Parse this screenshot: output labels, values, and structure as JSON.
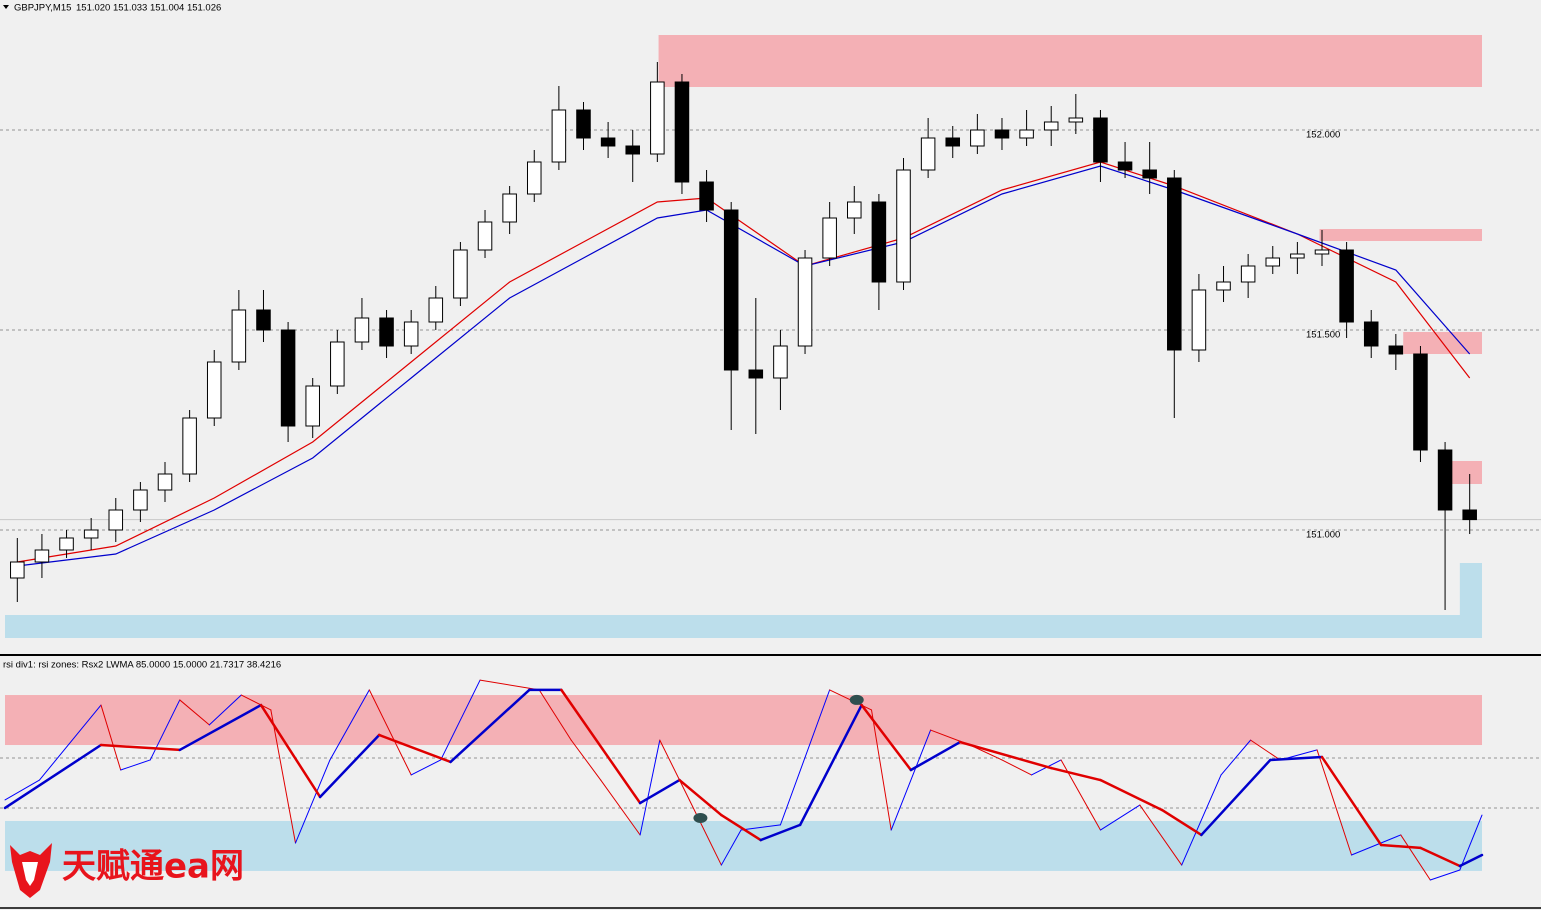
{
  "chart_data": [
    {
      "type": "candlestick",
      "title": "GBPJPY,M15",
      "quote": "151.020 151.033 151.004 151.026",
      "xlim": [
        -0.5,
        59.5
      ],
      "ylim": [
        150.695,
        152.325
      ],
      "yticks": [
        {
          "value": 151,
          "label": "151.000"
        },
        {
          "value": 151.5,
          "label": "151.500"
        },
        {
          "value": 152,
          "label": "152.000"
        }
      ],
      "grid": true,
      "up_color": "#ffffff",
      "down_color": "#000000",
      "candles": [
        [
          150.88,
          150.98,
          150.82,
          150.92
        ],
        [
          150.92,
          150.99,
          150.88,
          150.95
        ],
        [
          150.95,
          151.0,
          150.93,
          150.98
        ],
        [
          150.98,
          151.03,
          150.95,
          151.0
        ],
        [
          151.0,
          151.08,
          150.97,
          151.05
        ],
        [
          151.05,
          151.12,
          151.02,
          151.1
        ],
        [
          151.1,
          151.17,
          151.07,
          151.14
        ],
        [
          151.14,
          151.3,
          151.12,
          151.28
        ],
        [
          151.28,
          151.45,
          151.26,
          151.42
        ],
        [
          151.42,
          151.6,
          151.4,
          151.55
        ],
        [
          151.55,
          151.6,
          151.47,
          151.5
        ],
        [
          151.5,
          151.52,
          151.22,
          151.26
        ],
        [
          151.26,
          151.38,
          151.23,
          151.36
        ],
        [
          151.36,
          151.5,
          151.34,
          151.47
        ],
        [
          151.47,
          151.58,
          151.45,
          151.53
        ],
        [
          151.53,
          151.55,
          151.43,
          151.46
        ],
        [
          151.46,
          151.55,
          151.44,
          151.52
        ],
        [
          151.52,
          151.61,
          151.5,
          151.58
        ],
        [
          151.58,
          151.72,
          151.56,
          151.7
        ],
        [
          151.7,
          151.8,
          151.68,
          151.77
        ],
        [
          151.77,
          151.86,
          151.74,
          151.84
        ],
        [
          151.84,
          151.95,
          151.82,
          151.92
        ],
        [
          151.92,
          152.11,
          151.9,
          152.05
        ],
        [
          152.05,
          152.07,
          151.95,
          151.98
        ],
        [
          151.98,
          152.02,
          151.93,
          151.96
        ],
        [
          151.96,
          152.0,
          151.87,
          151.94
        ],
        [
          151.94,
          152.17,
          151.92,
          152.12
        ],
        [
          152.12,
          152.14,
          151.84,
          151.87
        ],
        [
          151.87,
          151.9,
          151.77,
          151.8
        ],
        [
          151.8,
          151.82,
          151.25,
          151.4
        ],
        [
          151.4,
          151.58,
          151.24,
          151.38
        ],
        [
          151.38,
          151.5,
          151.3,
          151.46
        ],
        [
          151.46,
          151.7,
          151.44,
          151.68
        ],
        [
          151.68,
          151.82,
          151.66,
          151.78
        ],
        [
          151.78,
          151.86,
          151.74,
          151.82
        ],
        [
          151.82,
          151.84,
          151.55,
          151.62
        ],
        [
          151.62,
          151.93,
          151.6,
          151.9
        ],
        [
          151.9,
          152.03,
          151.88,
          151.98
        ],
        [
          151.98,
          152.01,
          151.93,
          151.96
        ],
        [
          151.96,
          152.04,
          151.94,
          152.0
        ],
        [
          152.0,
          152.03,
          151.95,
          151.98
        ],
        [
          151.98,
          152.05,
          151.96,
          152.0
        ],
        [
          152.0,
          152.06,
          151.96,
          152.02
        ],
        [
          152.02,
          152.09,
          151.99,
          152.03
        ],
        [
          152.03,
          152.05,
          151.87,
          151.92
        ],
        [
          151.92,
          151.97,
          151.88,
          151.9
        ],
        [
          151.9,
          151.97,
          151.84,
          151.88
        ],
        [
          151.88,
          151.9,
          151.28,
          151.45
        ],
        [
          151.45,
          151.64,
          151.42,
          151.6
        ],
        [
          151.6,
          151.66,
          151.57,
          151.62
        ],
        [
          151.62,
          151.69,
          151.58,
          151.66
        ],
        [
          151.66,
          151.71,
          151.64,
          151.68
        ],
        [
          151.68,
          151.72,
          151.64,
          151.69
        ],
        [
          151.69,
          151.75,
          151.66,
          151.7
        ],
        [
          151.7,
          151.72,
          151.48,
          151.52
        ],
        [
          151.52,
          151.55,
          151.43,
          151.46
        ],
        [
          151.46,
          151.49,
          151.4,
          151.44
        ],
        [
          151.44,
          151.46,
          151.17,
          151.2
        ],
        [
          151.2,
          151.22,
          150.8,
          151.05
        ],
        [
          151.05,
          151.14,
          150.99,
          151.026
        ]
      ],
      "moving_averages": [
        {
          "color": "#e00000",
          "x": [
            0,
            4,
            8,
            12,
            16,
            20,
            23,
            26,
            28,
            32,
            36,
            40,
            44,
            47,
            52,
            56,
            59
          ],
          "values": [
            150.92,
            150.96,
            151.08,
            151.22,
            151.42,
            151.62,
            151.72,
            151.82,
            151.83,
            151.66,
            151.73,
            151.85,
            151.92,
            151.86,
            151.74,
            151.62,
            151.38
          ]
        },
        {
          "color": "#0000cc",
          "x": [
            0,
            4,
            8,
            12,
            16,
            20,
            23,
            26,
            28,
            32,
            36,
            40,
            44,
            47,
            52,
            56,
            59
          ],
          "values": [
            150.91,
            150.94,
            151.05,
            151.18,
            151.38,
            151.58,
            151.68,
            151.78,
            151.8,
            151.66,
            151.72,
            151.84,
            151.91,
            151.85,
            151.74,
            151.65,
            151.44
          ]
        }
      ],
      "zones": [
        {
          "color": "#f4b0b5",
          "x": [
            26.05,
            59.5
          ],
          "y": [
            152.1075,
            152.2375
          ]
        },
        {
          "color": "#f4b0b5",
          "x": [
            52.9,
            59.5
          ],
          "y": [
            151.7225,
            151.7525
          ]
        },
        {
          "color": "#f4b0b5",
          "x": [
            56.3,
            59.5
          ],
          "y": [
            151.44,
            151.495
          ]
        },
        {
          "color": "#f4b0b5",
          "x": [
            58.1,
            59.5
          ],
          "y": [
            151.115,
            151.1725
          ]
        },
        {
          "color": "#bcdeeb",
          "x": [
            -0.5,
            59.5
          ],
          "y": [
            150.73,
            150.7875
          ]
        },
        {
          "color": "#bcdeeb",
          "x": [
            58.6,
            59.5
          ],
          "y": [
            150.7875,
            150.9175
          ]
        }
      ]
    },
    {
      "type": "line",
      "title": "rsi div1: rsi zones: Rsx2 LWMA 85.0000 15.0000 21.7317 38.4216",
      "xlim": [
        -0.5,
        59.5
      ],
      "ylim": [
        0,
        100
      ],
      "levels": [
        60,
        39.6
      ],
      "zones": [
        {
          "color": "#f4b0b5",
          "x": [
            -0.5,
            59.5
          ],
          "y": [
            65.3,
            85.7
          ]
        },
        {
          "color": "#bcdeeb",
          "x": [
            -0.5,
            59.5
          ],
          "y": [
            13.9,
            34.3
          ]
        }
      ],
      "series": [
        {
          "up_color": "#0000ff",
          "down_color": "#e00000",
          "width": 1,
          "x": [
            -0.5,
            0.9,
            3.4,
            4.2,
            5.4,
            6.6,
            7.8,
            9.1,
            10.3,
            11.3,
            12.7,
            14.3,
            16,
            17.2,
            18.8,
            21.2,
            22.5,
            23.7,
            25.3,
            26.1,
            27.3,
            28.6,
            29.4,
            31,
            33,
            34.7,
            35.5,
            37.1,
            38.7,
            40,
            41.2,
            42.4,
            44,
            45.6,
            47.3,
            48.9,
            50.1,
            51.3,
            52.8,
            54.2,
            56.2,
            57.4,
            58.6,
            59.5
          ],
          "values": [
            42.9,
            51,
            81.6,
            55.1,
            59.2,
            83.7,
            73.5,
            85.7,
            79.6,
            25.3,
            59.2,
            87.8,
            53.1,
            59.2,
            91.8,
            87.8,
            67.3,
            51,
            28.6,
            67.3,
            42.9,
            16.3,
            30.6,
            32.7,
            87.8,
            79.6,
            30.6,
            71.4,
            65.3,
            59.2,
            53.1,
            59.2,
            30.6,
            40.8,
            16.3,
            53.1,
            67.3,
            59.2,
            63.3,
            20.4,
            28.6,
            10.2,
            14.3,
            36.7
          ]
        },
        {
          "up_color": "#0000cc",
          "down_color": "#e00000",
          "width": 2.5,
          "x": [
            -0.5,
            3.4,
            6.6,
            9.9,
            12.3,
            14.7,
            17.6,
            20.8,
            22.1,
            25.3,
            26.9,
            28.6,
            30.2,
            31.8,
            34.3,
            36.3,
            38.3,
            42,
            44,
            46.5,
            48.1,
            50.9,
            53,
            55.4,
            57,
            58.6,
            59.5
          ],
          "values": [
            39.6,
            65.3,
            63.3,
            81.6,
            44.1,
            69.4,
            58.4,
            87.8,
            87.8,
            41.6,
            51,
            36.7,
            26.5,
            32.7,
            81.6,
            55.1,
            66.5,
            55.9,
            51,
            38.8,
            28.6,
            59.2,
            60.4,
            24.5,
            23.3,
            15.9,
            20.4
          ]
        }
      ],
      "signals": {
        "color": "#2f4f4f",
        "x": [
          34.1,
          27.75
        ],
        "values": [
          83.7,
          35.5
        ]
      }
    }
  ],
  "watermark": "天赋通ea网"
}
